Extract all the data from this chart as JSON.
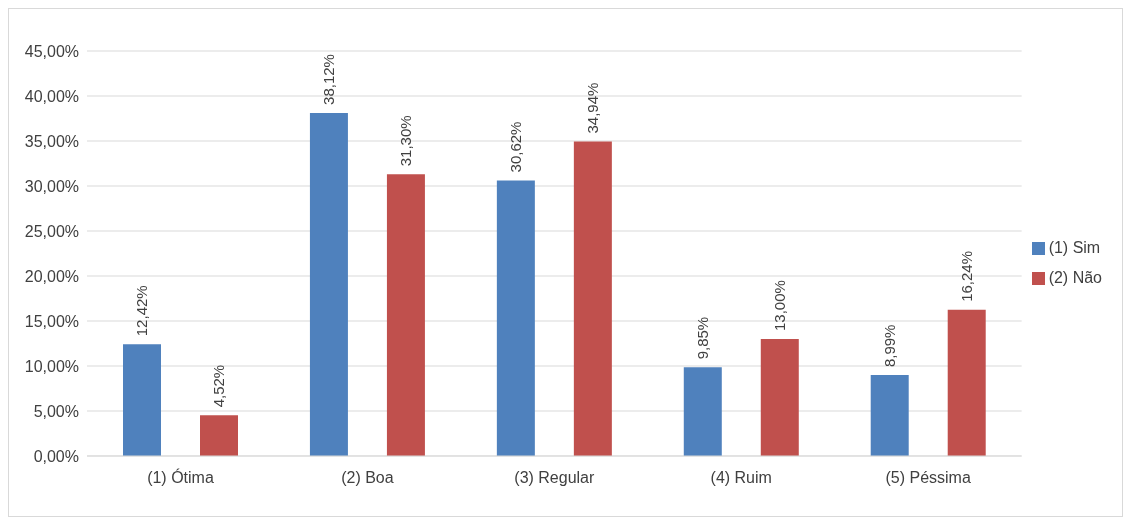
{
  "chart_data": {
    "type": "bar",
    "categories": [
      "(1) Ótima",
      "(2) Boa",
      "(3) Regular",
      "(4) Ruim",
      "(5) Péssima"
    ],
    "series": [
      {
        "name": "(1) Sim",
        "color": "#4f81bd",
        "values": [
          12.42,
          38.12,
          30.62,
          9.85,
          8.99
        ],
        "value_labels": [
          "12,42%",
          "38,12%",
          "30,62%",
          "9,85%",
          "8,99%"
        ]
      },
      {
        "name": "(2) Não",
        "color": "#c0504d",
        "values": [
          4.52,
          31.3,
          34.94,
          13.0,
          16.24
        ],
        "value_labels": [
          "4,52%",
          "31,30%",
          "34,94%",
          "13,00%",
          "16,24%"
        ]
      }
    ],
    "ylim": [
      0,
      45
    ],
    "yticks": [
      {
        "value": 0,
        "label": "0,00%"
      },
      {
        "value": 5,
        "label": "5,00%"
      },
      {
        "value": 10,
        "label": "10,00%"
      },
      {
        "value": 15,
        "label": "15,00%"
      },
      {
        "value": 20,
        "label": "20,00%"
      },
      {
        "value": 25,
        "label": "25,00%"
      },
      {
        "value": 30,
        "label": "30,00%"
      },
      {
        "value": 35,
        "label": "35,00%"
      },
      {
        "value": 40,
        "label": "40,00%"
      },
      {
        "value": 45,
        "label": "45,00%"
      }
    ],
    "grid": "y",
    "legend": "right"
  }
}
